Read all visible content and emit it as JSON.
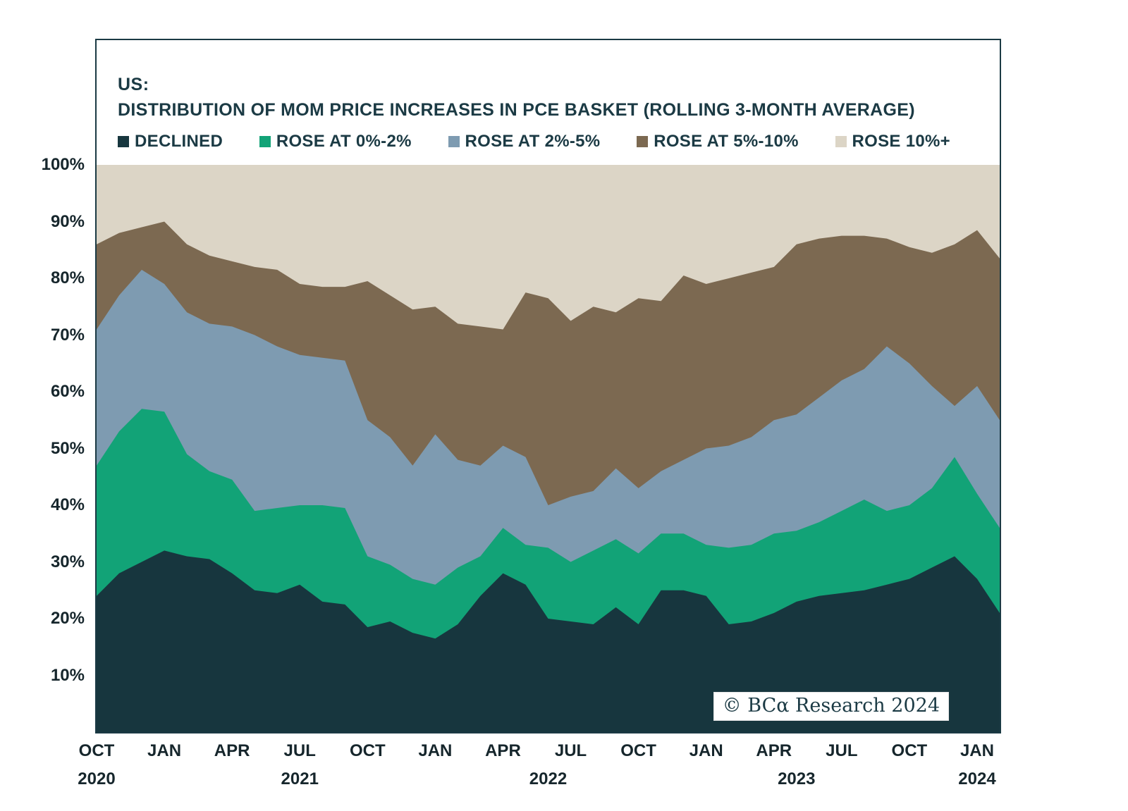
{
  "header": {
    "region": "US:",
    "title": "DISTRIBUTION OF MOM PRICE INCREASES IN PCE BASKET (ROLLING 3-MONTH AVERAGE)"
  },
  "legend": [
    {
      "label": "DECLINED",
      "color": "#17363e"
    },
    {
      "label": "ROSE AT 0%-2%",
      "color": "#12a377"
    },
    {
      "label": "ROSE AT 2%-5%",
      "color": "#7e9bb1"
    },
    {
      "label": "ROSE AT 5%-10%",
      "color": "#7c6951"
    },
    {
      "label": "ROSE 10%+",
      "color": "#dcd5c6"
    }
  ],
  "watermark": "© BCα Research 2024",
  "chart_data": {
    "type": "area",
    "stacked": true,
    "title": "US: DISTRIBUTION OF MOM PRICE INCREASES IN PCE BASKET (ROLLING 3-MONTH AVERAGE)",
    "ylim": [
      0,
      100
    ],
    "grid": false,
    "legend_position": "top",
    "x": [
      "OCT 2020",
      "NOV 2020",
      "DEC 2020",
      "JAN 2021",
      "FEB 2021",
      "MAR 2021",
      "APR 2021",
      "MAY 2021",
      "JUN 2021",
      "JUL 2021",
      "AUG 2021",
      "SEP 2021",
      "OCT 2021",
      "NOV 2021",
      "DEC 2021",
      "JAN 2022",
      "FEB 2022",
      "MAR 2022",
      "APR 2022",
      "MAY 2022",
      "JUN 2022",
      "JUL 2022",
      "AUG 2022",
      "SEP 2022",
      "OCT 2022",
      "NOV 2022",
      "DEC 2022",
      "JAN 2023",
      "FEB 2023",
      "MAR 2023",
      "APR 2023",
      "MAY 2023",
      "JUN 2023",
      "JUL 2023",
      "AUG 2023",
      "SEP 2023",
      "OCT 2023",
      "NOV 2023",
      "DEC 2023",
      "JAN 2024",
      "FEB 2024"
    ],
    "series": [
      {
        "name": "DECLINED",
        "color": "#17363e",
        "values": [
          24,
          28,
          30,
          32,
          31,
          30.5,
          28,
          25,
          24.5,
          26,
          23,
          22.5,
          18.5,
          19.5,
          17.5,
          16.5,
          19,
          24,
          28,
          26,
          20,
          19.5,
          19,
          22,
          19,
          25,
          25,
          24,
          19,
          19.5,
          21,
          23,
          24,
          24.5,
          25,
          26,
          27,
          29,
          31,
          27,
          21
        ]
      },
      {
        "name": "ROSE AT 0%-2%",
        "color": "#12a377",
        "values": [
          23,
          25,
          27,
          24.5,
          18,
          15.5,
          16.5,
          14,
          15,
          14,
          17,
          17,
          12.5,
          10,
          9.5,
          9.5,
          10,
          7,
          8,
          7,
          12.5,
          10.5,
          13,
          12,
          12.5,
          10,
          10,
          9,
          13.5,
          13.5,
          14,
          12.5,
          13,
          14.5,
          16,
          13,
          13,
          14,
          17.5,
          15,
          15
        ]
      },
      {
        "name": "ROSE AT 2%-5%",
        "color": "#7e9bb1",
        "values": [
          24,
          24,
          24.5,
          22.5,
          25,
          26,
          27,
          31,
          28.5,
          26.5,
          26,
          26,
          24,
          22.5,
          20,
          26.5,
          19,
          16,
          14.5,
          15.5,
          7.5,
          11.5,
          10.5,
          12.5,
          11.5,
          11,
          13,
          17,
          18,
          19,
          20,
          20.5,
          22,
          23,
          23,
          29,
          25,
          18,
          9,
          19,
          19
        ]
      },
      {
        "name": "ROSE AT 5%-10%",
        "color": "#7c6951",
        "values": [
          15,
          11,
          7.5,
          11,
          12,
          12,
          11.5,
          12,
          13.5,
          12.5,
          12.5,
          13,
          24.5,
          25,
          27.5,
          22.5,
          24,
          24.5,
          20.5,
          29,
          36.5,
          31,
          32.5,
          27.5,
          33.5,
          30,
          32.5,
          29,
          29.5,
          29,
          27,
          30,
          28,
          25.5,
          23.5,
          19,
          20.5,
          23.5,
          28.5,
          27.5,
          28.5
        ]
      },
      {
        "name": "ROSE 10%+",
        "color": "#dcd5c6",
        "values": [
          14,
          12,
          11,
          10,
          14,
          16,
          17,
          18,
          18.5,
          21.5,
          21.5,
          21.5,
          20.5,
          23,
          25.5,
          25,
          28,
          28.5,
          29,
          22.5,
          23.5,
          27.5,
          25,
          26,
          23.5,
          24,
          19.5,
          21,
          20,
          19,
          18,
          14,
          13,
          12.5,
          12.5,
          13,
          14.5,
          15.5,
          14,
          11.5,
          16.5
        ]
      }
    ],
    "yticks": [
      {
        "label": "100%",
        "value": 100
      },
      {
        "label": "90%",
        "value": 90
      },
      {
        "label": "80%",
        "value": 80
      },
      {
        "label": "70%",
        "value": 70
      },
      {
        "label": "60%",
        "value": 60
      },
      {
        "label": "50%",
        "value": 50
      },
      {
        "label": "40%",
        "value": 40
      },
      {
        "label": "30%",
        "value": 30
      },
      {
        "label": "20%",
        "value": 20
      },
      {
        "label": "10%",
        "value": 10
      }
    ],
    "x_tick_labels": [
      {
        "label": "OCT",
        "index": 0
      },
      {
        "label": "JAN",
        "index": 3
      },
      {
        "label": "APR",
        "index": 6
      },
      {
        "label": "JUL",
        "index": 9
      },
      {
        "label": "OCT",
        "index": 12
      },
      {
        "label": "JAN",
        "index": 15
      },
      {
        "label": "APR",
        "index": 18
      },
      {
        "label": "JUL",
        "index": 21
      },
      {
        "label": "OCT",
        "index": 24
      },
      {
        "label": "JAN",
        "index": 27
      },
      {
        "label": "APR",
        "index": 30
      },
      {
        "label": "JUL",
        "index": 33
      },
      {
        "label": "OCT",
        "index": 36
      },
      {
        "label": "JAN",
        "index": 39
      }
    ],
    "year_labels": [
      {
        "label": "2020",
        "index": 0
      },
      {
        "label": "2021",
        "index": 9
      },
      {
        "label": "2022",
        "index": 20
      },
      {
        "label": "2023",
        "index": 31
      },
      {
        "label": "2024",
        "index": 39
      }
    ]
  }
}
